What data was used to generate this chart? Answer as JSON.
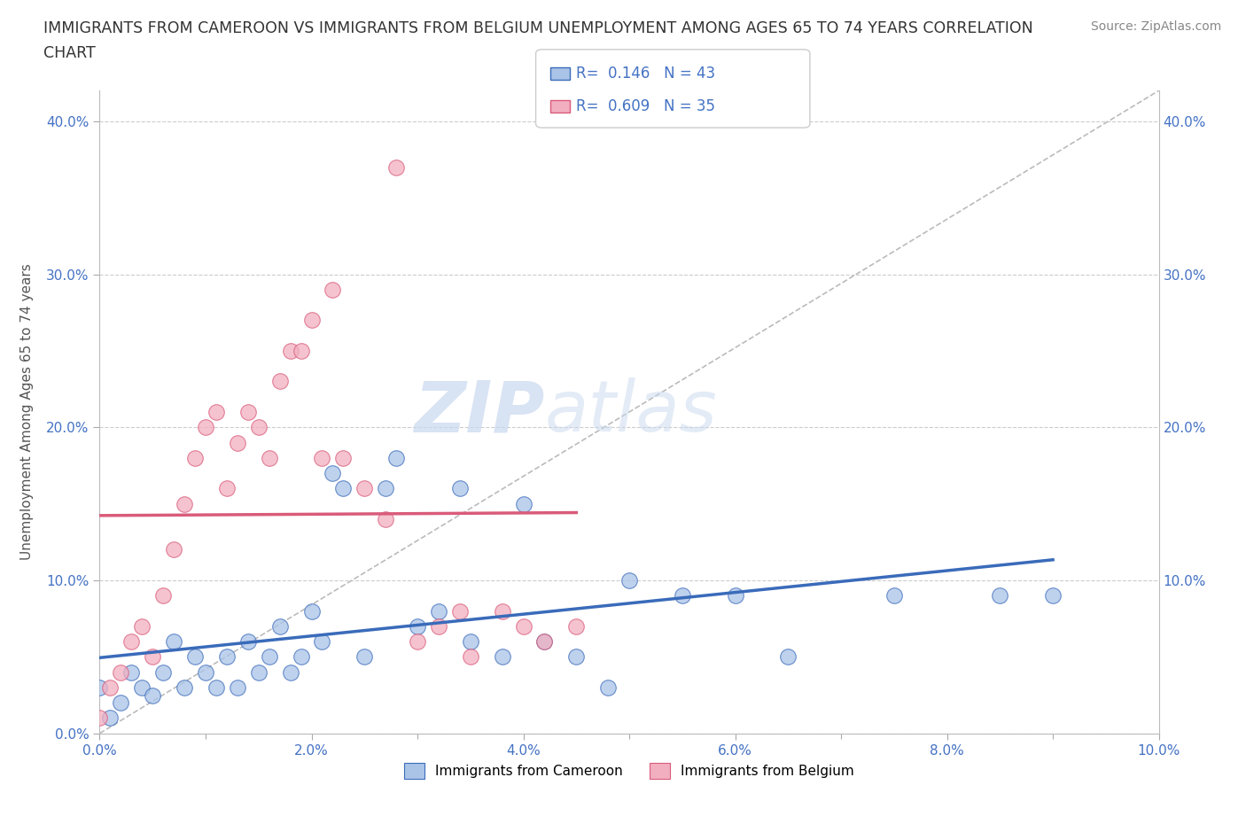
{
  "title_line1": "IMMIGRANTS FROM CAMEROON VS IMMIGRANTS FROM BELGIUM UNEMPLOYMENT AMONG AGES 65 TO 74 YEARS CORRELATION",
  "title_line2": "CHART",
  "source_text": "Source: ZipAtlas.com",
  "ylabel": "Unemployment Among Ages 65 to 74 years",
  "legend_label_1": "Immigrants from Cameroon",
  "legend_label_2": "Immigrants from Belgium",
  "R1": 0.146,
  "N1": 43,
  "R2": 0.609,
  "N2": 35,
  "color1": "#aac4e8",
  "color2": "#f2afc0",
  "trendline1_color": "#3a6bba",
  "trendline2_color": "#d95b7a",
  "watermark_zip": "ZIP",
  "watermark_atlas": "atlas",
  "xlim": [
    0.0,
    0.1
  ],
  "ylim": [
    0.0,
    0.42
  ],
  "xticks": [
    0.0,
    0.02,
    0.04,
    0.06,
    0.08,
    0.1
  ],
  "yticks": [
    0.0,
    0.1,
    0.2,
    0.3,
    0.4
  ],
  "background_color": "#ffffff",
  "scatter1_x": [
    0.0,
    0.001,
    0.002,
    0.003,
    0.004,
    0.005,
    0.006,
    0.007,
    0.008,
    0.009,
    0.01,
    0.011,
    0.012,
    0.013,
    0.014,
    0.015,
    0.016,
    0.017,
    0.018,
    0.019,
    0.02,
    0.021,
    0.022,
    0.023,
    0.025,
    0.027,
    0.028,
    0.03,
    0.032,
    0.034,
    0.035,
    0.038,
    0.04,
    0.042,
    0.045,
    0.048,
    0.05,
    0.055,
    0.06,
    0.065,
    0.075,
    0.085,
    0.09
  ],
  "scatter1_y": [
    0.03,
    0.01,
    0.02,
    0.04,
    0.03,
    0.025,
    0.04,
    0.06,
    0.03,
    0.05,
    0.04,
    0.03,
    0.05,
    0.03,
    0.06,
    0.04,
    0.05,
    0.07,
    0.04,
    0.05,
    0.08,
    0.06,
    0.17,
    0.16,
    0.05,
    0.16,
    0.18,
    0.07,
    0.08,
    0.16,
    0.06,
    0.05,
    0.15,
    0.06,
    0.05,
    0.03,
    0.1,
    0.09,
    0.09,
    0.05,
    0.09,
    0.09,
    0.09
  ],
  "scatter2_x": [
    0.0,
    0.001,
    0.002,
    0.003,
    0.004,
    0.005,
    0.006,
    0.007,
    0.008,
    0.009,
    0.01,
    0.011,
    0.012,
    0.013,
    0.014,
    0.015,
    0.016,
    0.017,
    0.018,
    0.019,
    0.02,
    0.021,
    0.022,
    0.023,
    0.025,
    0.027,
    0.028,
    0.03,
    0.032,
    0.034,
    0.035,
    0.038,
    0.04,
    0.042,
    0.045
  ],
  "scatter2_y": [
    0.01,
    0.03,
    0.04,
    0.06,
    0.07,
    0.05,
    0.09,
    0.12,
    0.15,
    0.18,
    0.2,
    0.21,
    0.16,
    0.19,
    0.21,
    0.2,
    0.18,
    0.23,
    0.25,
    0.25,
    0.27,
    0.18,
    0.29,
    0.18,
    0.16,
    0.14,
    0.37,
    0.06,
    0.07,
    0.08,
    0.05,
    0.08,
    0.07,
    0.06,
    0.07
  ]
}
